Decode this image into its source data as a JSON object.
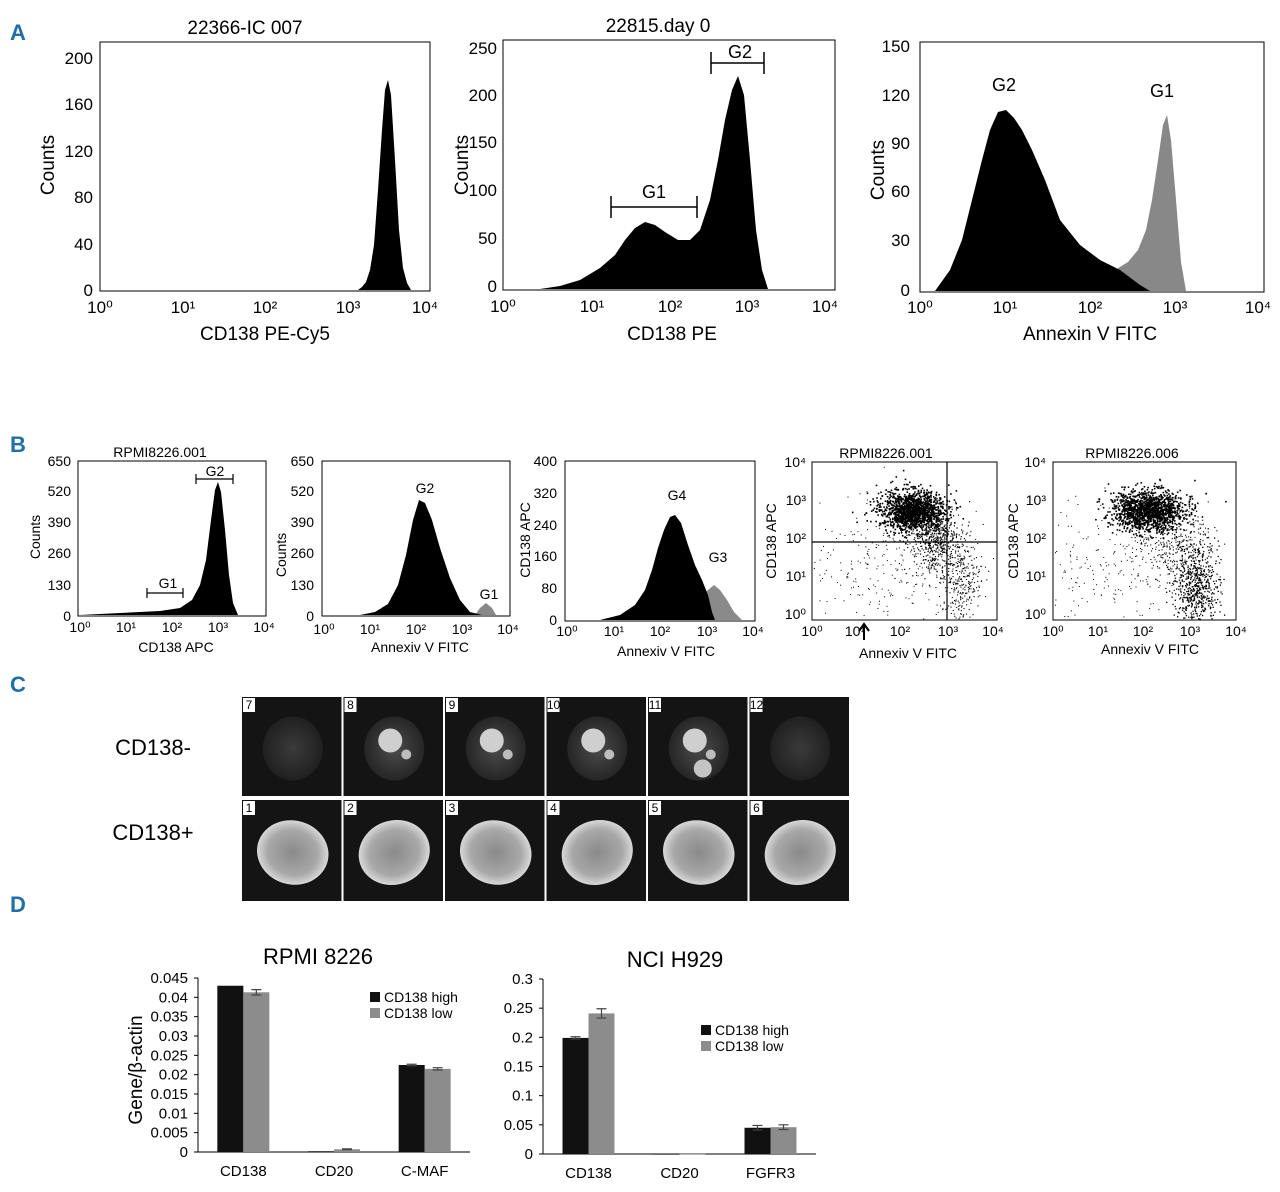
{
  "panels": {
    "A": "A",
    "B": "B",
    "C": "C",
    "D": "D"
  },
  "flow_A": [
    {
      "title": "22366-IC 007",
      "xlabel": "CD138 PE-Cy5",
      "ylabel": "Counts",
      "yticks": [
        "200",
        "160",
        "120",
        "80",
        "40",
        "0"
      ],
      "xticks": [
        "10⁰",
        "10¹",
        "10²",
        "10³",
        "10⁴"
      ],
      "gates": []
    },
    {
      "title": "22815.day 0",
      "xlabel": "CD138 PE",
      "ylabel": "Counts",
      "yticks": [
        "250",
        "200",
        "150",
        "100",
        "50",
        "0"
      ],
      "xticks": [
        "10⁰",
        "10¹",
        "10²",
        "10³",
        "10⁴"
      ],
      "gates": [
        "G1",
        "G2"
      ]
    },
    {
      "title": "",
      "xlabel": "Annexin V FITC",
      "ylabel": "Counts",
      "yticks": [
        "150",
        "120",
        "90",
        "60",
        "30",
        "0"
      ],
      "xticks": [
        "10⁰",
        "10¹",
        "10²",
        "10³",
        "10⁴"
      ],
      "gates": [
        "G2",
        "G1"
      ]
    }
  ],
  "flow_B": [
    {
      "title": "RPMI8226.001",
      "xlabel": "CD138 APC",
      "ylabel": "Counts",
      "yticks": [
        "650",
        "520",
        "390",
        "260",
        "130",
        "0"
      ],
      "xticks": [
        "10⁰",
        "10¹",
        "10²",
        "10³",
        "10⁴"
      ],
      "gates": [
        "G1",
        "G2"
      ]
    },
    {
      "title": "",
      "xlabel": "Annexiv V FITC",
      "ylabel": "Counts",
      "yticks": [
        "650",
        "520",
        "390",
        "260",
        "130",
        "0"
      ],
      "xticks": [
        "10⁰",
        "10¹",
        "10²",
        "10³",
        "10⁴"
      ],
      "gates": [
        "G2",
        "G1"
      ]
    },
    {
      "title": "",
      "xlabel": "Annexiv V FITC",
      "ylabel": "CD138 APC",
      "yticks": [
        "400",
        "320",
        "240",
        "160",
        "80",
        "0"
      ],
      "xticks": [
        "10⁰",
        "10¹",
        "10²",
        "10³",
        "10⁴"
      ],
      "gates": [
        "G4",
        "G3"
      ]
    },
    {
      "title": "RPMI8226.001",
      "xlabel": "Annexiv V FITC",
      "ylabel": "CD138 APC",
      "yticks": [
        "10⁴",
        "10³",
        "10²",
        "10¹",
        "10⁰"
      ],
      "xticks": [
        "10⁰",
        "10¹",
        "10²",
        "10³",
        "10⁴"
      ],
      "gates": []
    },
    {
      "title": "RPMI8226.006",
      "xlabel": "Annexiv V FITC",
      "ylabel": "CD138 APC",
      "yticks": [
        "10⁴",
        "10³",
        "10²",
        "10¹",
        "10⁰"
      ],
      "xticks": [
        "10⁰",
        "10¹",
        "10²",
        "10³",
        "10⁴"
      ],
      "gates": []
    }
  ],
  "microscopy": {
    "rows": [
      {
        "label": "CD138-",
        "cells": [
          "7",
          "8",
          "9",
          "10",
          "11",
          "12"
        ]
      },
      {
        "label": "CD138+",
        "cells": [
          "1",
          "2",
          "3",
          "4",
          "5",
          "6"
        ]
      }
    ]
  },
  "chart_data": [
    {
      "type": "bar",
      "title": "RPMI 8226",
      "ylabel": "Gene/β-actin",
      "categories": [
        "CD138",
        "CD20",
        "C-MAF"
      ],
      "series": [
        {
          "name": "CD138 high",
          "values": [
            0.043,
            0.0002,
            0.0225
          ],
          "color": "#111111"
        },
        {
          "name": "CD138 low",
          "values": [
            0.0413,
            0.0007,
            0.0215
          ],
          "color": "#8c8c8c"
        }
      ],
      "errors": [
        [
          0,
          0,
          0.0002
        ],
        [
          0.0007,
          0.0001,
          0.0003
        ]
      ],
      "ylim": [
        0,
        0.045
      ],
      "yticks": [
        "0.045",
        "0.04",
        "0.035",
        "0.03",
        "0.025",
        "0.02",
        "0.015",
        "0.01",
        "0.005",
        "0"
      ],
      "legend": "top-right"
    },
    {
      "type": "bar",
      "title": "NCI H929",
      "ylabel": "",
      "categories": [
        "CD138",
        "CD20",
        "FGFR3"
      ],
      "series": [
        {
          "name": "CD138 high",
          "values": [
            0.199,
            0.0003,
            0.045
          ],
          "color": "#111111"
        },
        {
          "name": "CD138 low",
          "values": [
            0.241,
            0.0003,
            0.046
          ],
          "color": "#8c8c8c"
        }
      ],
      "errors": [
        [
          0.002,
          0,
          0.004
        ],
        [
          0.008,
          0,
          0.004
        ]
      ],
      "ylim": [
        0,
        0.3
      ],
      "yticks": [
        "0.3",
        "0.25",
        "0.2",
        "0.15",
        "0.1",
        "0.05",
        "0"
      ],
      "legend": "right"
    }
  ]
}
